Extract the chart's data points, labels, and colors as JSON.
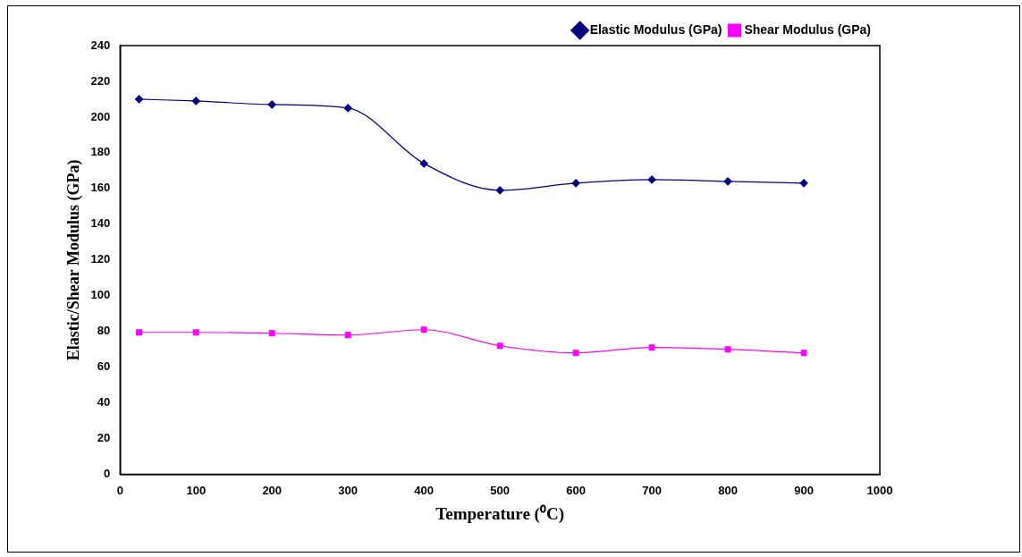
{
  "chart_data": {
    "type": "line",
    "xlabel": "Temperature (⁰C)",
    "ylabel": "Elastic/Shear Modulus (GPa)",
    "x": [
      25,
      100,
      200,
      300,
      400,
      500,
      600,
      700,
      800,
      900
    ],
    "series": [
      {
        "name": "Elastic Modulus (GPa)",
        "color": "#000080",
        "marker": "diamond",
        "values": [
          210,
          209,
          207,
          205,
          174,
          159,
          163,
          165,
          164,
          163
        ]
      },
      {
        "name": "Shear Modulus (GPa)",
        "color": "#ff00ff",
        "marker": "square",
        "values": [
          79.5,
          79.5,
          79,
          78,
          81,
          72,
          68,
          71,
          70,
          68
        ]
      }
    ],
    "xlim": [
      0,
      1000
    ],
    "xticks": [
      0,
      100,
      200,
      300,
      400,
      500,
      600,
      700,
      800,
      900,
      1000
    ],
    "ylim": [
      0,
      240
    ],
    "yticks": [
      0,
      20,
      40,
      60,
      80,
      100,
      120,
      140,
      160,
      180,
      200,
      220,
      240
    ],
    "grid": false,
    "legend": "top right",
    "line_style": "solid"
  }
}
